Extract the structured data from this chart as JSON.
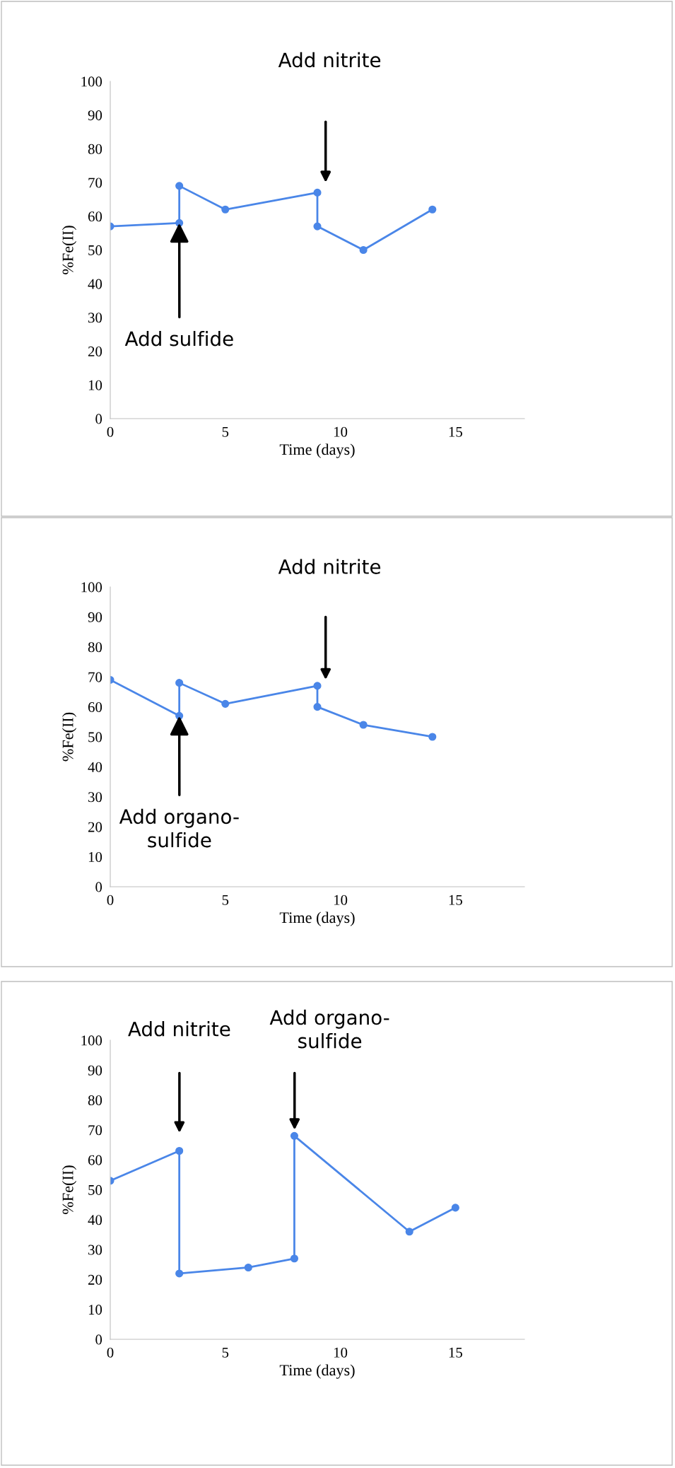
{
  "chart_data": [
    {
      "type": "line",
      "xlabel": "Time (days)",
      "ylabel": "%Fe(II)",
      "x": [
        0,
        3,
        3,
        5,
        9,
        9,
        11,
        14
      ],
      "series": [
        {
          "color": "#4a86e8",
          "values": [
            57,
            58,
            69,
            62,
            67,
            57,
            50,
            62
          ]
        }
      ],
      "xlim": [
        0,
        18
      ],
      "xticks": [
        0,
        5,
        10,
        15
      ],
      "ylim": [
        0,
        100
      ],
      "yticks": [
        0,
        10,
        20,
        30,
        40,
        50,
        60,
        70,
        80,
        90,
        100
      ],
      "marker": "circle",
      "line_style": "solid",
      "grid": false,
      "annotations": [
        {
          "text": "Add sulfide",
          "x": 3,
          "y": 58
        },
        "Add nitrite"
      ]
    },
    {
      "type": "line",
      "xlabel": "Time (days)",
      "ylabel": "%Fe(II)",
      "x": [
        0,
        3,
        3,
        5,
        9,
        9,
        11,
        14
      ],
      "series": [
        {
          "color": "#4a86e8",
          "values": [
            69,
            57,
            68,
            61,
            67,
            60,
            54,
            50
          ]
        }
      ],
      "xlim": [
        0,
        18
      ],
      "xticks": [
        0,
        5,
        10,
        15
      ],
      "ylim": [
        0,
        100
      ],
      "yticks": [
        0,
        10,
        20,
        30,
        40,
        50,
        60,
        70,
        80,
        90,
        100
      ],
      "marker": "circle",
      "line_style": "solid",
      "grid": false,
      "annotations": [
        {
          "text": "Add organo-\nsulfide",
          "x": 3,
          "y": 57
        },
        "Add nitrite"
      ]
    },
    {
      "type": "line",
      "xlabel": "Time (days)",
      "ylabel": "%Fe(II)",
      "x": [
        0,
        3,
        3,
        6,
        8,
        8,
        13,
        15
      ],
      "series": [
        {
          "color": "#4a86e8",
          "values": [
            53,
            63,
            22,
            24,
            27,
            68,
            36,
            44
          ]
        }
      ],
      "xlim": [
        0,
        18
      ],
      "xticks": [
        0,
        5,
        10,
        15
      ],
      "ylim": [
        0,
        100
      ],
      "yticks": [
        0,
        10,
        20,
        30,
        40,
        50,
        60,
        70,
        80,
        90,
        100
      ],
      "marker": "circle",
      "line_style": "solid",
      "grid": false,
      "annotations": [
        "Add nitrite",
        "Add organo-\nsulfide"
      ]
    }
  ]
}
